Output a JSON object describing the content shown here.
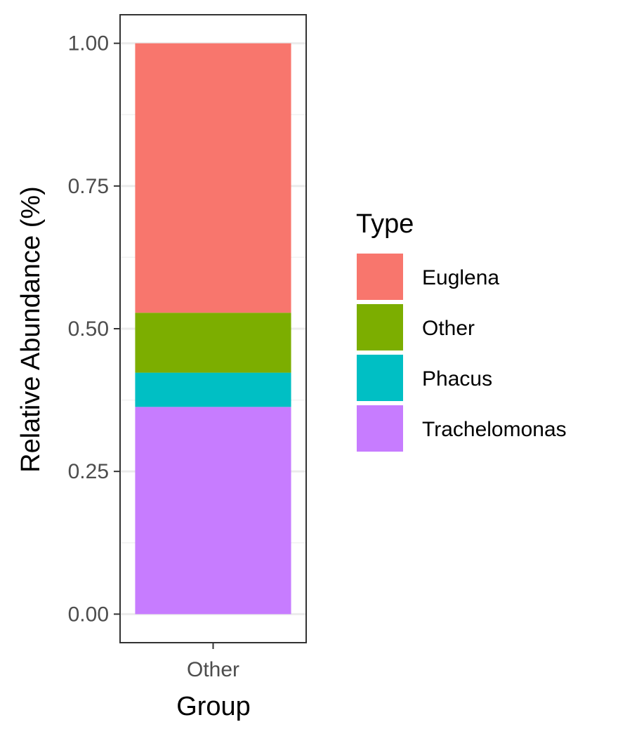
{
  "chart_data": {
    "type": "bar",
    "stacked": true,
    "categories": [
      "Other"
    ],
    "series": [
      {
        "name": "Trachelomonas",
        "values": [
          0.363
        ],
        "color": "#C77CFF"
      },
      {
        "name": "Phacus",
        "values": [
          0.06
        ],
        "color": "#00BFC4"
      },
      {
        "name": "Other",
        "values": [
          0.105
        ],
        "color": "#7CAE00"
      },
      {
        "name": "Euglena",
        "values": [
          0.472
        ],
        "color": "#F8766D"
      }
    ],
    "xlabel": "Group",
    "ylabel": "Relative Abundance (%)",
    "ylim": [
      -0.05,
      1.05
    ],
    "yticks": [
      "0.00",
      "0.25",
      "0.50",
      "0.75",
      "1.00"
    ],
    "ytick_values": [
      0,
      0.25,
      0.5,
      0.75,
      1.0
    ],
    "grid": true,
    "legend": {
      "title": "Type",
      "position": "right",
      "items": [
        "Euglena",
        "Other",
        "Phacus",
        "Trachelomonas"
      ]
    }
  }
}
